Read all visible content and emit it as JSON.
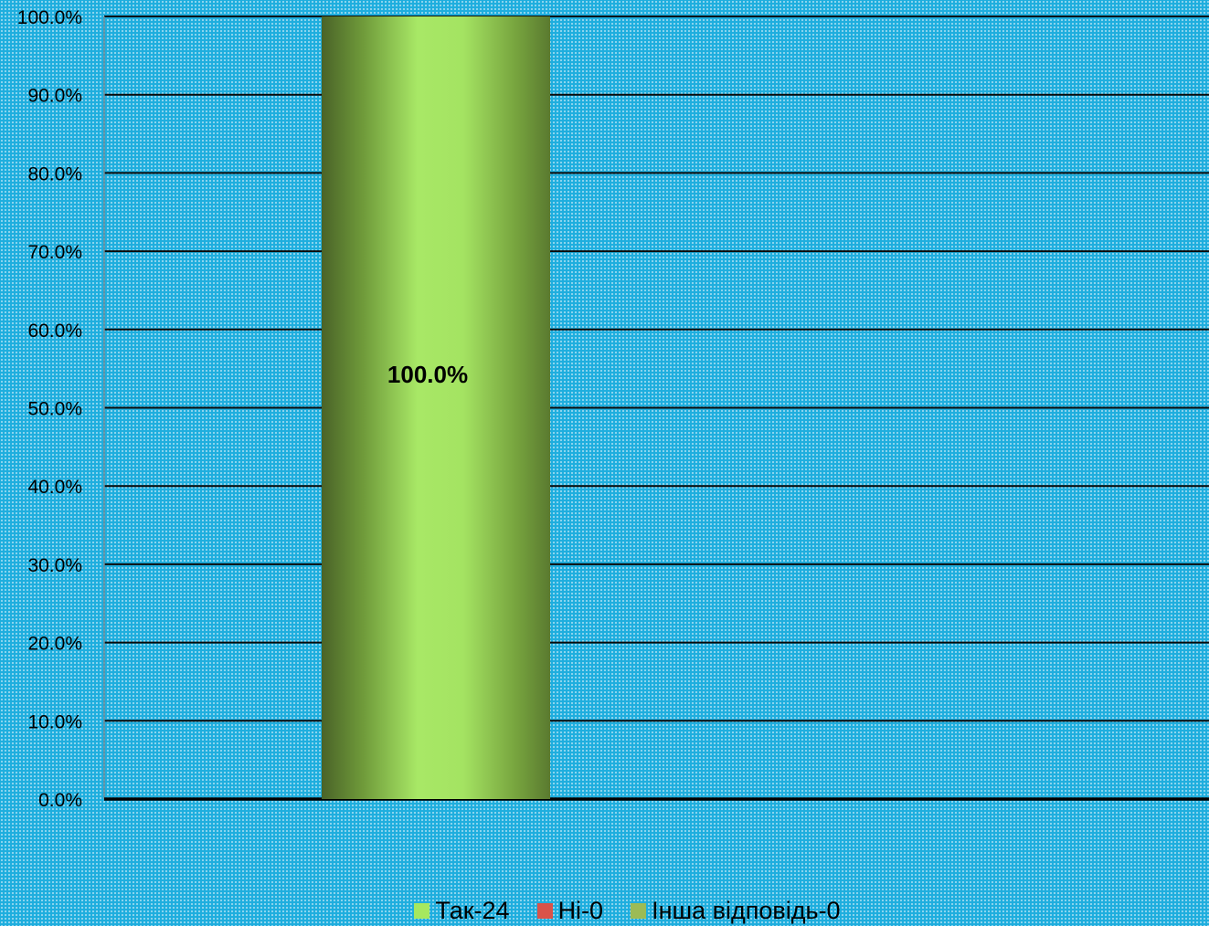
{
  "chart_data": {
    "type": "bar",
    "title": "",
    "xlabel": "",
    "ylabel": "",
    "ylim": [
      0,
      100
    ],
    "y_tick_format": "percent_1dp",
    "y_ticks": [
      "0.0%",
      "10.0%",
      "20.0%",
      "30.0%",
      "40.0%",
      "50.0%",
      "60.0%",
      "70.0%",
      "80.0%",
      "90.0%",
      "100.0%"
    ],
    "categories": [
      ""
    ],
    "series": [
      {
        "name": "Так-24",
        "values": [
          100.0
        ],
        "color": "#a6e85f",
        "data_label": "100.0%"
      },
      {
        "name": "Ні-0",
        "values": [
          0.0
        ],
        "color": "#d9534a"
      },
      {
        "name": "Інша відповідь-0",
        "values": [
          0.0
        ],
        "color": "#9cbb56"
      }
    ],
    "grid": true,
    "legend_position": "bottom"
  }
}
